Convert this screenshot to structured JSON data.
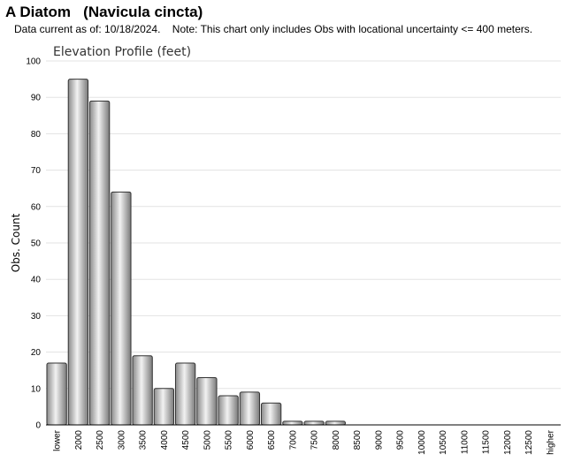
{
  "header": {
    "title": "A Diatom   (Navicula cincta)",
    "subtitle": "Data current as of: 10/18/2024.    Note: This chart only includes Obs with locational uncertainty <= 400 meters."
  },
  "chart_data": {
    "type": "bar",
    "title": "Elevation Profile (feet)",
    "xlabel": "",
    "ylabel": "Obs. Count",
    "ylim": [
      0,
      100
    ],
    "yticks": [
      0,
      10,
      20,
      30,
      40,
      50,
      60,
      70,
      80,
      90,
      100
    ],
    "grid": true,
    "legend": "none",
    "categories": [
      "lower",
      "2000",
      "2500",
      "3000",
      "3500",
      "4000",
      "4500",
      "5000",
      "5500",
      "6000",
      "6500",
      "7000",
      "7500",
      "8000",
      "8500",
      "9000",
      "9500",
      "10000",
      "10500",
      "11000",
      "11500",
      "12000",
      "12500",
      "higher"
    ],
    "values": [
      17,
      95,
      89,
      64,
      19,
      10,
      17,
      13,
      8,
      9,
      6,
      1,
      1,
      1,
      0,
      0,
      0,
      0,
      0,
      0,
      0,
      0,
      0,
      0
    ],
    "bar_color": "#b0b0b0"
  }
}
